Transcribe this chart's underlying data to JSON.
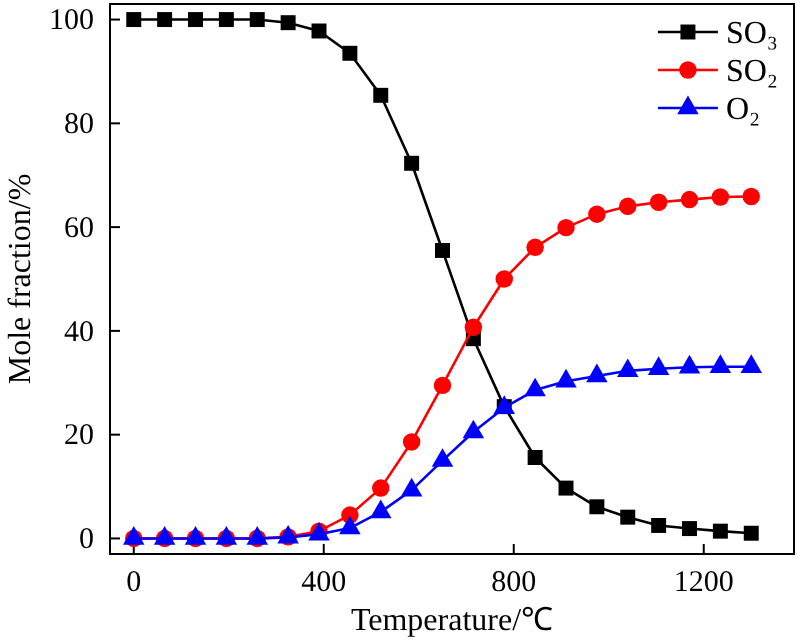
{
  "chart_data": {
    "type": "line",
    "xlabel": "Temperature/℃",
    "ylabel": "Mole fraction/%",
    "x": [
      0,
      65,
      130,
      195,
      260,
      325,
      390,
      455,
      520,
      585,
      650,
      715,
      780,
      845,
      910,
      975,
      1040,
      1105,
      1170,
      1235,
      1300
    ],
    "series": [
      {
        "name": "SO₃",
        "color": "#000000",
        "marker": "square",
        "values": [
          100,
          100,
          100,
          100,
          100,
          99.4,
          97.8,
          93.5,
          85.4,
          72.3,
          55.5,
          38.5,
          25.4,
          15.6,
          9.7,
          6.1,
          4.1,
          2.5,
          1.9,
          1.4,
          1.0
        ]
      },
      {
        "name": "SO₂",
        "color": "#ff0000",
        "marker": "circle",
        "values": [
          0,
          0,
          0,
          0,
          0,
          0.3,
          1.4,
          4.5,
          9.7,
          18.6,
          29.5,
          40.7,
          50.0,
          56.1,
          59.9,
          62.5,
          64.0,
          64.8,
          65.3,
          65.8,
          65.9
        ]
      },
      {
        "name": "O₂",
        "color": "#0000ff",
        "marker": "triangle",
        "values": [
          0,
          0,
          0,
          0,
          0,
          0.2,
          0.8,
          2.0,
          5.1,
          9.3,
          15.0,
          20.5,
          25.2,
          28.6,
          30.3,
          31.3,
          32.3,
          32.7,
          33.0,
          33.1,
          33.1
        ]
      }
    ],
    "xlim": [
      -50,
      1390
    ],
    "xticks": [
      0,
      400,
      800,
      1200
    ],
    "ylim": [
      -3,
      103
    ],
    "yticks": [
      0,
      20,
      40,
      60,
      80,
      100
    ],
    "grid": false,
    "legend": "top right",
    "line_style": "solid"
  }
}
